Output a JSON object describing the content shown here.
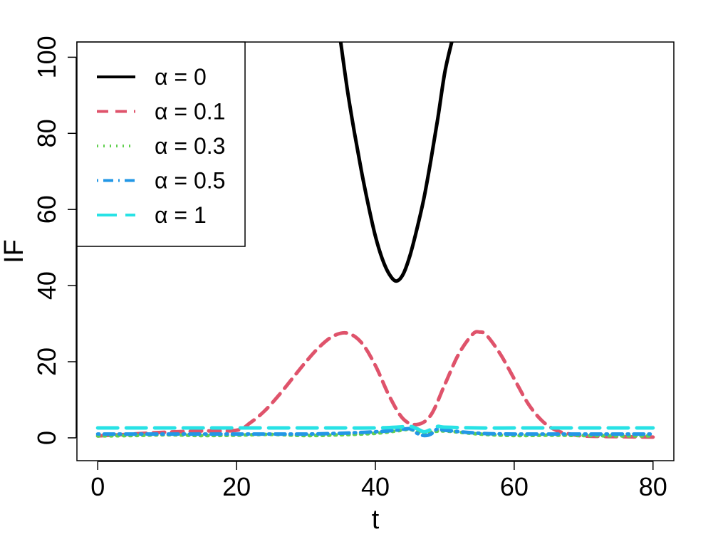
{
  "chart_data": {
    "type": "line",
    "xlabel": "t",
    "ylabel": "IF",
    "xlim": [
      -3,
      83
    ],
    "ylim": [
      -6,
      104
    ],
    "x_ticks": [
      0,
      20,
      40,
      60,
      80
    ],
    "y_ticks": [
      0,
      20,
      40,
      60,
      80,
      100
    ],
    "grid": false,
    "legend_position": "top-left",
    "series": [
      {
        "name": "α = 0",
        "color": "#000000",
        "dash": "solid",
        "x": [
          35,
          36,
          37,
          38,
          39,
          40,
          41,
          42,
          43,
          44,
          45,
          46,
          47,
          48,
          49,
          50,
          51
        ],
        "y": [
          104,
          91,
          80,
          70,
          61,
          53,
          47,
          43,
          41.2,
          43,
          48,
          55,
          63,
          73,
          84,
          96,
          104
        ]
      },
      {
        "name": "α = 0.1",
        "color": "#DF536B",
        "dash": "dashed",
        "x": [
          0,
          5,
          10,
          15,
          20,
          22,
          24,
          26,
          28,
          30,
          32,
          34,
          36,
          38,
          40,
          42,
          44,
          46,
          48,
          50,
          52,
          54,
          55,
          56,
          58,
          60,
          62,
          64,
          66,
          68,
          70,
          75,
          80
        ],
        "y": [
          0.5,
          1,
          1.5,
          1.8,
          2,
          4,
          7,
          11,
          15.5,
          20,
          24,
          26.8,
          27.5,
          25,
          19,
          11,
          5,
          3.5,
          6,
          14,
          22,
          27.2,
          27.8,
          27,
          22,
          15.5,
          9,
          4.5,
          2,
          1,
          0.5,
          0.3,
          0.2
        ]
      },
      {
        "name": "α = 0.3",
        "color": "#61D04F",
        "dash": "dotted",
        "x": [
          0,
          5,
          10,
          15,
          20,
          25,
          30,
          35,
          40,
          43,
          45,
          47,
          48,
          50,
          55,
          60,
          65,
          70,
          75,
          80
        ],
        "y": [
          0.5,
          0.6,
          0.8,
          0.6,
          0.7,
          0.9,
          0.6,
          0.8,
          1.2,
          1.8,
          2.2,
          1.0,
          1.5,
          1.8,
          1.0,
          0.6,
          0.7,
          0.6,
          0.5,
          0.5
        ]
      },
      {
        "name": "α = 0.5",
        "color": "#2297E6",
        "dash": "dashdot",
        "x": [
          0,
          5,
          10,
          15,
          20,
          25,
          30,
          35,
          40,
          43,
          45,
          46,
          47,
          48,
          49,
          50,
          55,
          60,
          65,
          70,
          75,
          80
        ],
        "y": [
          1.0,
          1.0,
          1.0,
          1.0,
          1.0,
          1.0,
          1.0,
          1.2,
          1.6,
          2.0,
          2.4,
          1.2,
          0.6,
          1.0,
          2.4,
          2.0,
          1.2,
          1.0,
          1.0,
          1.0,
          1.0,
          1.0
        ]
      },
      {
        "name": "α = 1",
        "color": "#28E2E5",
        "dash": "longdash",
        "x": [
          0,
          5,
          10,
          15,
          20,
          25,
          30,
          35,
          40,
          43,
          45,
          46,
          47,
          48,
          49,
          50,
          55,
          60,
          65,
          70,
          75,
          80
        ],
        "y": [
          2.6,
          2.6,
          2.6,
          2.6,
          2.6,
          2.6,
          2.6,
          2.6,
          2.6,
          2.8,
          3.0,
          2.4,
          1.6,
          2.2,
          3.0,
          2.8,
          2.6,
          2.6,
          2.6,
          2.6,
          2.6,
          2.6
        ]
      }
    ]
  }
}
